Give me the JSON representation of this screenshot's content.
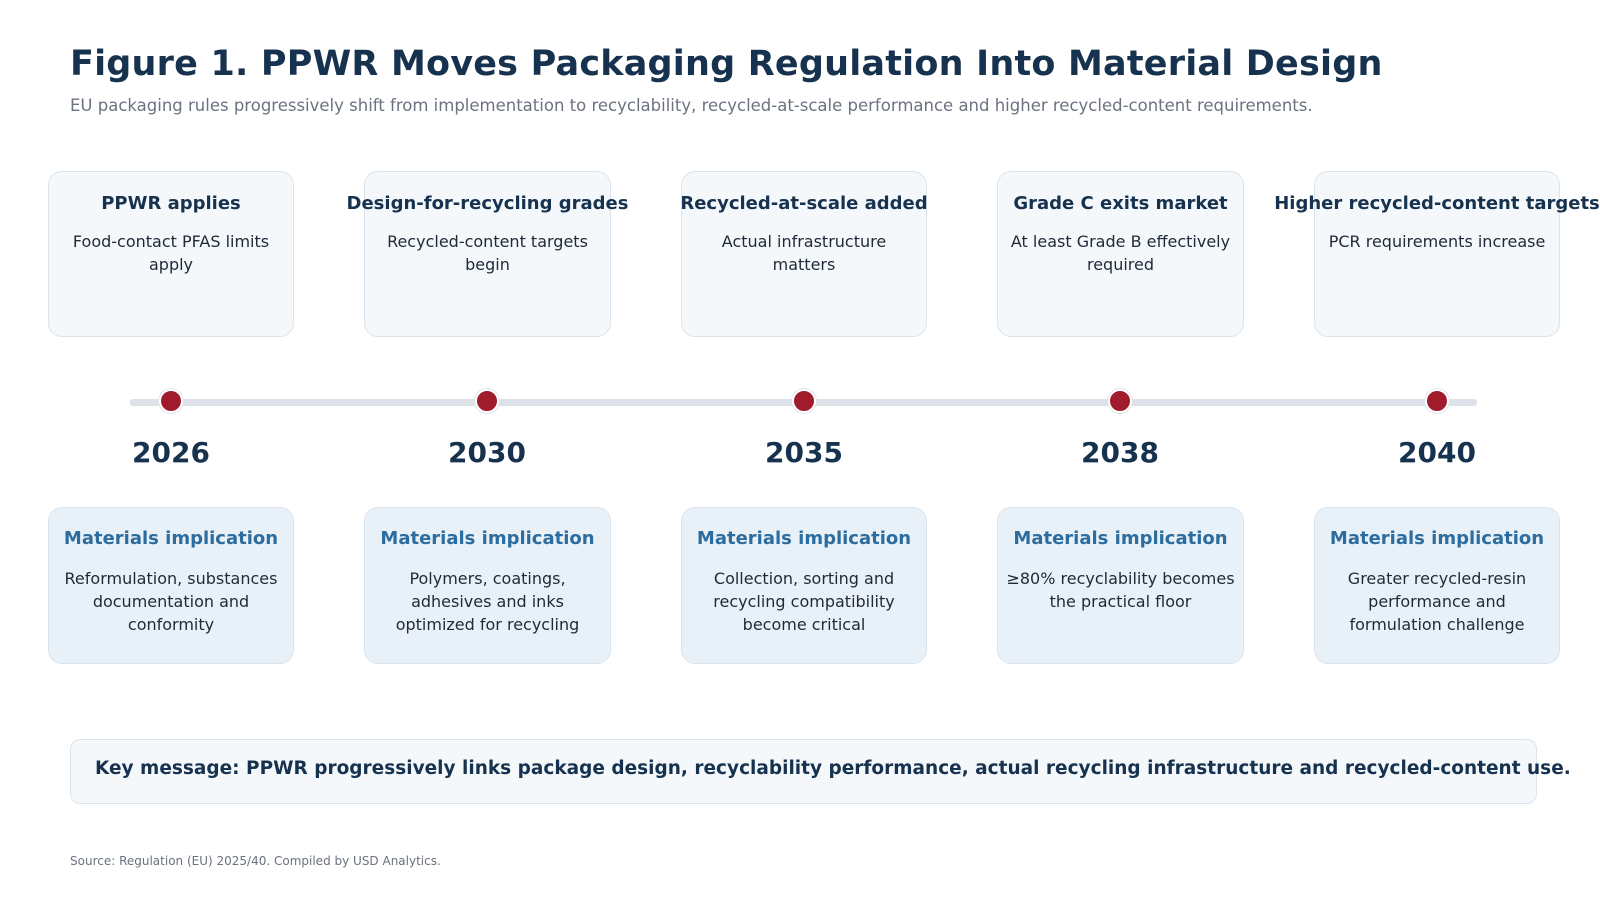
{
  "title": "Figure 1. PPWR Moves Packaging Regulation Into Material Design",
  "subtitle": "EU packaging rules progressively shift from implementation to recyclability, recycled-at-scale performance and higher recycled-content requirements.",
  "milestones": [
    {
      "year": "2026",
      "headline": "PPWR applies",
      "detail": "Food-contact PFAS limits apply",
      "implication_title": "Materials implication",
      "implication": "Reformulation, substances documentation and conformity"
    },
    {
      "year": "2030",
      "headline": "Design-for-recycling grades",
      "detail": "Recycled-content targets begin",
      "implication_title": "Materials implication",
      "implication": "Polymers, coatings, adhesives and inks optimized for recycling"
    },
    {
      "year": "2035",
      "headline": "Recycled-at-scale added",
      "detail": "Actual infrastructure matters",
      "implication_title": "Materials implication",
      "implication": "Collection, sorting and recycling compatibility become critical"
    },
    {
      "year": "2038",
      "headline": "Grade C exits market",
      "detail": "At least Grade B effectively required",
      "implication_title": "Materials implication",
      "implication": "≥80% recyclability becomes the practical floor"
    },
    {
      "year": "2040",
      "headline": "Higher recycled-content targets",
      "detail": "PCR requirements increase",
      "implication_title": "Materials implication",
      "implication": "Greater recycled-resin performance and formulation challenge"
    }
  ],
  "key_message": "Key message: PPWR progressively links package design, recyclability performance, actual recycling infrastructure and recycled-content use.",
  "source": "Source: Regulation (EU) 2025/40. Compiled by USD Analytics.",
  "colors": {
    "title": "#16324f",
    "accent": "#a01c2c",
    "implication": "#2c6c9e"
  }
}
